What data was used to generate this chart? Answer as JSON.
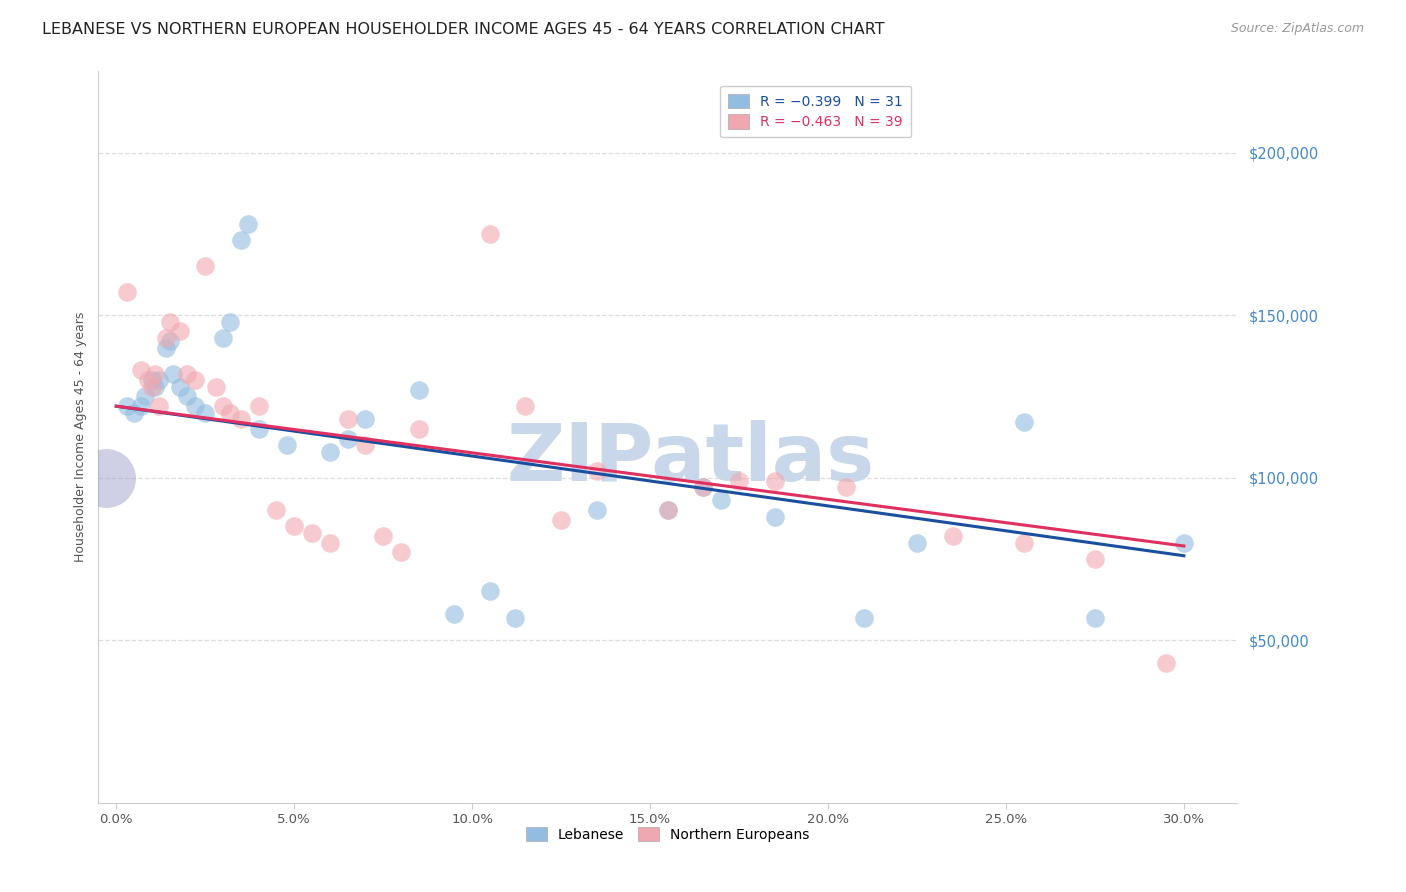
{
  "title": "LEBANESE VS NORTHERN EUROPEAN HOUSEHOLDER INCOME AGES 45 - 64 YEARS CORRELATION CHART",
  "source": "Source: ZipAtlas.com",
  "xlabel_vals": [
    0.0,
    5.0,
    10.0,
    15.0,
    20.0,
    25.0,
    30.0
  ],
  "ylabel": "Householder Income Ages 45 - 64 years",
  "ylabel_ticks": [
    "$50,000",
    "$100,000",
    "$150,000",
    "$200,000"
  ],
  "ylabel_vals": [
    50000,
    100000,
    150000,
    200000
  ],
  "ylim": [
    0,
    225000
  ],
  "xlim": [
    -0.5,
    31.5
  ],
  "watermark": "ZIPatlas",
  "watermark_color": "#c8d8ea",
  "blue_color": "#92bce0",
  "pink_color": "#f0a8b0",
  "blue_line_color": "#1a4fa0",
  "pink_line_color": "#e03060",
  "lebanese_points": [
    [
      0.3,
      122000
    ],
    [
      0.5,
      120000
    ],
    [
      0.7,
      122000
    ],
    [
      0.8,
      125000
    ],
    [
      1.0,
      130000
    ],
    [
      1.1,
      128000
    ],
    [
      1.2,
      130000
    ],
    [
      1.4,
      140000
    ],
    [
      1.5,
      142000
    ],
    [
      1.6,
      132000
    ],
    [
      1.8,
      128000
    ],
    [
      2.0,
      125000
    ],
    [
      2.2,
      122000
    ],
    [
      2.5,
      120000
    ],
    [
      3.0,
      143000
    ],
    [
      3.2,
      148000
    ],
    [
      3.5,
      173000
    ],
    [
      3.7,
      178000
    ],
    [
      4.0,
      115000
    ],
    [
      4.8,
      110000
    ],
    [
      6.0,
      108000
    ],
    [
      6.5,
      112000
    ],
    [
      7.0,
      118000
    ],
    [
      8.5,
      127000
    ],
    [
      9.5,
      58000
    ],
    [
      10.5,
      65000
    ],
    [
      11.2,
      57000
    ],
    [
      13.5,
      90000
    ],
    [
      15.5,
      90000
    ],
    [
      16.5,
      97000
    ],
    [
      17.0,
      93000
    ],
    [
      18.5,
      88000
    ],
    [
      21.0,
      57000
    ],
    [
      22.5,
      80000
    ],
    [
      25.5,
      117000
    ],
    [
      27.5,
      57000
    ],
    [
      30.0,
      80000
    ]
  ],
  "northern_european_points": [
    [
      0.3,
      157000
    ],
    [
      0.7,
      133000
    ],
    [
      0.9,
      130000
    ],
    [
      1.0,
      128000
    ],
    [
      1.1,
      132000
    ],
    [
      1.2,
      122000
    ],
    [
      1.4,
      143000
    ],
    [
      1.5,
      148000
    ],
    [
      1.8,
      145000
    ],
    [
      2.0,
      132000
    ],
    [
      2.2,
      130000
    ],
    [
      2.5,
      165000
    ],
    [
      2.8,
      128000
    ],
    [
      3.0,
      122000
    ],
    [
      3.2,
      120000
    ],
    [
      3.5,
      118000
    ],
    [
      4.0,
      122000
    ],
    [
      4.5,
      90000
    ],
    [
      5.0,
      85000
    ],
    [
      5.5,
      83000
    ],
    [
      6.0,
      80000
    ],
    [
      6.5,
      118000
    ],
    [
      7.0,
      110000
    ],
    [
      7.5,
      82000
    ],
    [
      8.0,
      77000
    ],
    [
      8.5,
      115000
    ],
    [
      10.5,
      175000
    ],
    [
      11.5,
      122000
    ],
    [
      12.5,
      87000
    ],
    [
      13.5,
      102000
    ],
    [
      15.5,
      90000
    ],
    [
      16.5,
      97000
    ],
    [
      17.5,
      99000
    ],
    [
      18.5,
      99000
    ],
    [
      20.5,
      97000
    ],
    [
      23.5,
      82000
    ],
    [
      25.5,
      80000
    ],
    [
      27.5,
      75000
    ],
    [
      29.5,
      43000
    ]
  ],
  "large_dot_x": -0.3,
  "large_dot_y": 100000,
  "large_dot_color": "#a0a0cc",
  "grid_color": "#dddddd",
  "background_color": "#ffffff",
  "title_fontsize": 11.5,
  "axis_label_fontsize": 9,
  "tick_label_fontsize": 9.5,
  "legend_fontsize": 10,
  "source_fontsize": 9,
  "dot_size": 180,
  "dot_alpha": 0.6,
  "line_width": 2.2
}
